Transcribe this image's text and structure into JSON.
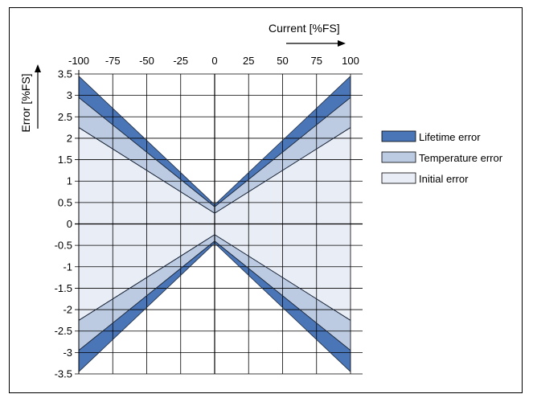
{
  "chart_data": {
    "type": "area",
    "title": "",
    "xlabel": "Current [%FS]",
    "ylabel": "Error [%FS]",
    "xlim": [
      -100,
      100
    ],
    "ylim": [
      -3.5,
      3.5
    ],
    "x_ticks": [
      -100,
      -75,
      -50,
      -25,
      0,
      25,
      50,
      75,
      100
    ],
    "y_ticks": [
      3.5,
      3,
      2.5,
      2,
      1.5,
      1,
      0.5,
      0,
      -0.5,
      -1,
      -1.5,
      -2,
      -2.5,
      -3,
      -3.5
    ],
    "x_tick_labels": [
      "-100",
      "-75",
      "-50",
      "-25",
      "0",
      "25",
      "50",
      "75",
      "100"
    ],
    "y_tick_labels": [
      "3.5",
      "3",
      "2.5",
      "2",
      "1.5",
      "1",
      "0.5",
      "0",
      "-0.5",
      "-1",
      "-1.5",
      "-2",
      "-2.5",
      "-3",
      "-3.5"
    ],
    "x_axis_position": "top",
    "grid": true,
    "legend_position": "right",
    "series": [
      {
        "name": "Lifetime error",
        "color": "#4a76b8",
        "x": [
          -100,
          0,
          100
        ],
        "upper": [
          3.45,
          0.45,
          3.45
        ],
        "lower": [
          2.95,
          0.4,
          2.95
        ]
      },
      {
        "name": "Temperature error",
        "color": "#bccbe2",
        "x": [
          -100,
          0,
          100
        ],
        "upper": [
          2.95,
          0.4,
          2.95
        ],
        "lower": [
          2.25,
          0.25,
          2.25
        ]
      },
      {
        "name": "Initial error",
        "color": "#e9edf5",
        "x": [
          -100,
          0,
          100
        ],
        "upper": [
          2.25,
          0.25,
          2.25
        ],
        "lower": [
          -2.25,
          -0.25,
          -2.25
        ]
      }
    ],
    "negative_bands_mirror": true
  }
}
